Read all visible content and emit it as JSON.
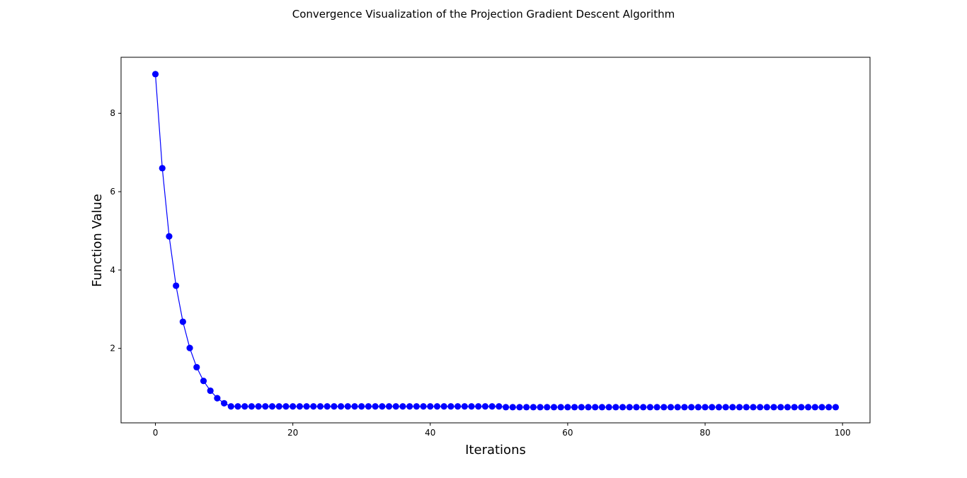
{
  "chart_data": {
    "type": "line",
    "title": "Convergence Visualization of the Projection Gradient Descent Algorithm",
    "xlabel": "Iterations",
    "ylabel": "Function Value",
    "xlim": [
      -5,
      104
    ],
    "ylim": [
      0.1,
      9.43
    ],
    "x_ticks": [
      0,
      20,
      40,
      60,
      80,
      100
    ],
    "y_ticks": [
      2,
      4,
      6,
      8
    ],
    "grid": false,
    "legend": "none",
    "series": [
      {
        "color": "#0000ff",
        "marker": "circle",
        "x": [
          0,
          1,
          2,
          3,
          4,
          5,
          6,
          7,
          8,
          9,
          10,
          11,
          12,
          13,
          14,
          15,
          16,
          17,
          18,
          19,
          20,
          21,
          22,
          23,
          24,
          25,
          26,
          27,
          28,
          29,
          30,
          31,
          32,
          33,
          34,
          35,
          36,
          37,
          38,
          39,
          40,
          41,
          42,
          43,
          44,
          45,
          46,
          47,
          48,
          49,
          50,
          51,
          52,
          53,
          54,
          55,
          56,
          57,
          58,
          59,
          60,
          61,
          62,
          63,
          64,
          65,
          66,
          67,
          68,
          69,
          70,
          71,
          72,
          73,
          74,
          75,
          76,
          77,
          78,
          79,
          80,
          81,
          82,
          83,
          84,
          85,
          86,
          87,
          88,
          89,
          90,
          91,
          92,
          93,
          94,
          95,
          96,
          97,
          98,
          99
        ],
        "values": [
          9.0,
          6.6,
          4.86,
          3.6,
          2.68,
          2.01,
          1.52,
          1.17,
          0.92,
          0.73,
          0.6,
          0.52,
          0.52,
          0.52,
          0.52,
          0.52,
          0.52,
          0.52,
          0.52,
          0.52,
          0.52,
          0.52,
          0.52,
          0.52,
          0.52,
          0.52,
          0.52,
          0.52,
          0.52,
          0.52,
          0.52,
          0.52,
          0.52,
          0.52,
          0.52,
          0.52,
          0.52,
          0.52,
          0.52,
          0.52,
          0.52,
          0.52,
          0.52,
          0.52,
          0.52,
          0.52,
          0.52,
          0.52,
          0.52,
          0.52,
          0.52,
          0.5,
          0.5,
          0.5,
          0.5,
          0.5,
          0.5,
          0.5,
          0.5,
          0.5,
          0.5,
          0.5,
          0.5,
          0.5,
          0.5,
          0.5,
          0.5,
          0.5,
          0.5,
          0.5,
          0.5,
          0.5,
          0.5,
          0.5,
          0.5,
          0.5,
          0.5,
          0.5,
          0.5,
          0.5,
          0.5,
          0.5,
          0.5,
          0.5,
          0.5,
          0.5,
          0.5,
          0.5,
          0.5,
          0.5,
          0.5,
          0.5,
          0.5,
          0.5,
          0.5,
          0.5,
          0.5,
          0.5,
          0.5,
          0.5
        ]
      }
    ]
  }
}
